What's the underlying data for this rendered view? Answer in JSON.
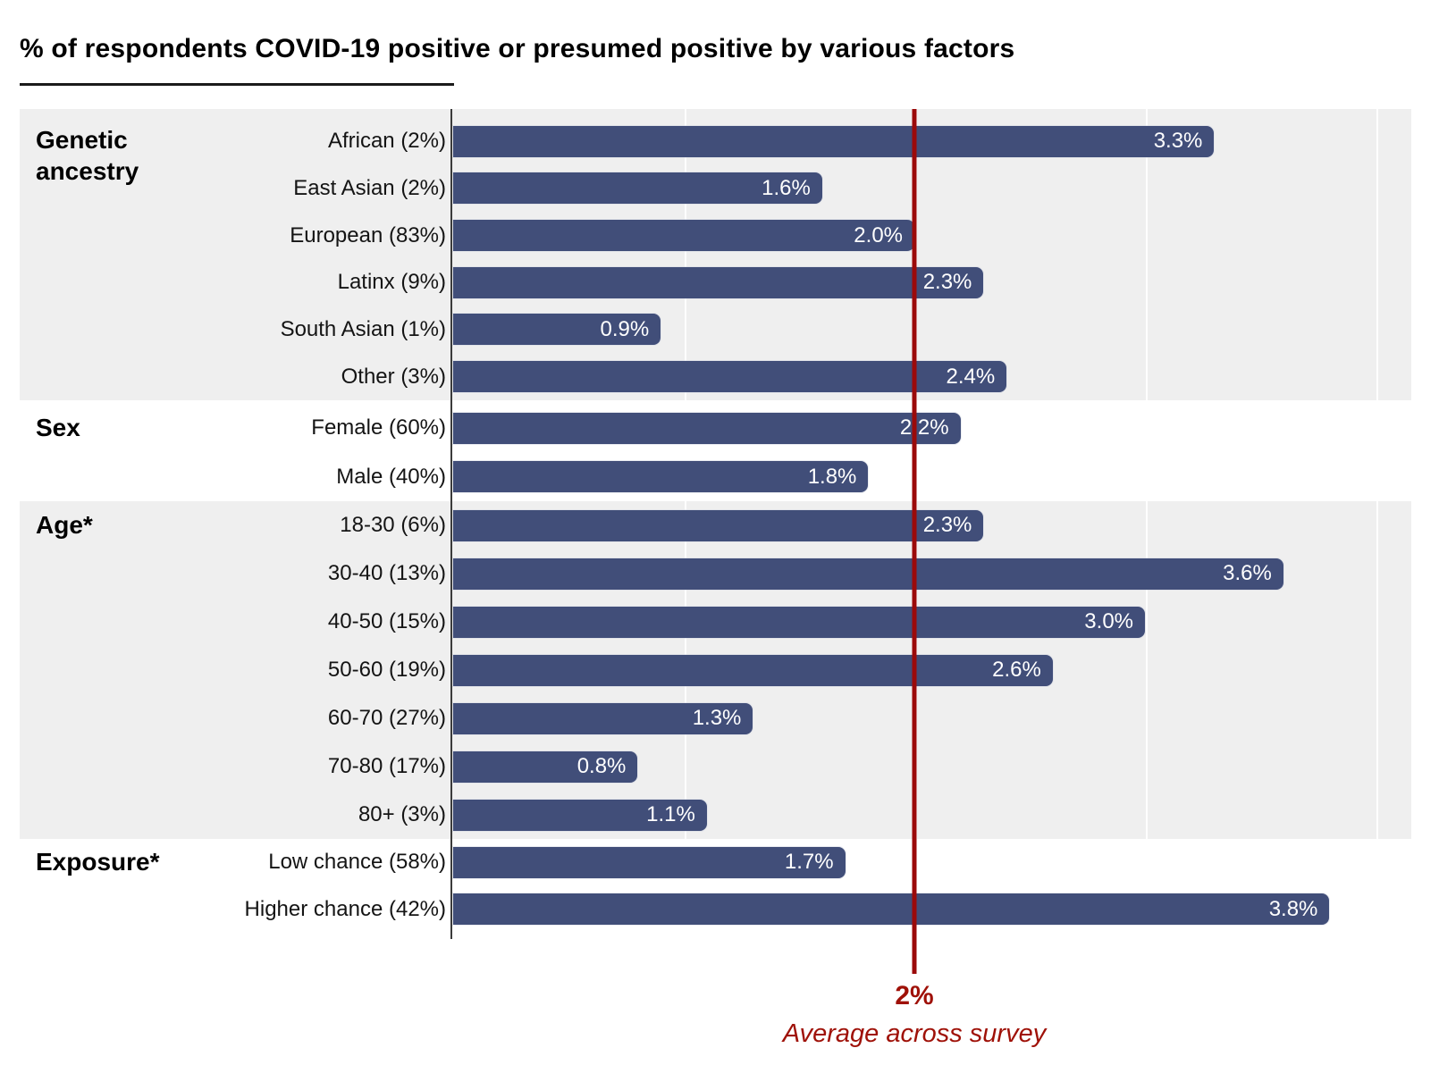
{
  "colors": {
    "bar": "#414E79",
    "band_shaded": "#EFEFEF",
    "band_plain": "#FFFFFF",
    "axis": "#3B3B3B",
    "average_line": "#9B0A0A",
    "average_text": "#9F1108",
    "value_text": "#FFFFFF"
  },
  "chart_data": {
    "type": "bar",
    "orientation": "horizontal",
    "title": "% of respondents COVID-19 positive or presumed positive by various factors",
    "xlabel": "",
    "ylabel": "",
    "unit": "%",
    "xlim": [
      0,
      4
    ],
    "gridline_step": 1,
    "grid": "on",
    "legend": "none",
    "average": {
      "value": 2,
      "label": "2%",
      "caption": "Average across survey"
    },
    "groups": [
      {
        "name": "Genetic ancestry",
        "rows": [
          {
            "label": "African (2%)",
            "value": 3.3,
            "value_label": "3.3%"
          },
          {
            "label": "East Asian (2%)",
            "value": 1.6,
            "value_label": "1.6%"
          },
          {
            "label": "European (83%)",
            "value": 2.0,
            "value_label": "2.0%"
          },
          {
            "label": "Latinx (9%)",
            "value": 2.3,
            "value_label": "2.3%"
          },
          {
            "label": "South Asian (1%)",
            "value": 0.9,
            "value_label": "0.9%"
          },
          {
            "label": "Other (3%)",
            "value": 2.4,
            "value_label": "2.4%"
          }
        ]
      },
      {
        "name": "Sex",
        "rows": [
          {
            "label": "Female (60%)",
            "value": 2.2,
            "value_label": "2.2%"
          },
          {
            "label": "Male (40%)",
            "value": 1.8,
            "value_label": "1.8%"
          }
        ]
      },
      {
        "name": "Age*",
        "rows": [
          {
            "label": "18-30 (6%)",
            "value": 2.3,
            "value_label": "2.3%"
          },
          {
            "label": "30-40 (13%)",
            "value": 3.6,
            "value_label": "3.6%"
          },
          {
            "label": "40-50 (15%)",
            "value": 3.0,
            "value_label": "3.0%"
          },
          {
            "label": "50-60 (19%)",
            "value": 2.6,
            "value_label": "2.6%"
          },
          {
            "label": "60-70 (27%)",
            "value": 1.3,
            "value_label": "1.3%"
          },
          {
            "label": "70-80 (17%)",
            "value": 0.8,
            "value_label": "0.8%"
          },
          {
            "label": "80+ (3%)",
            "value": 1.1,
            "value_label": "1.1%"
          }
        ]
      },
      {
        "name": "Exposure*",
        "rows": [
          {
            "label": "Low chance (58%)",
            "value": 1.7,
            "value_label": "1.7%"
          },
          {
            "label": "Higher chance (42%)",
            "value": 3.8,
            "value_label": "3.8%"
          }
        ]
      }
    ]
  }
}
